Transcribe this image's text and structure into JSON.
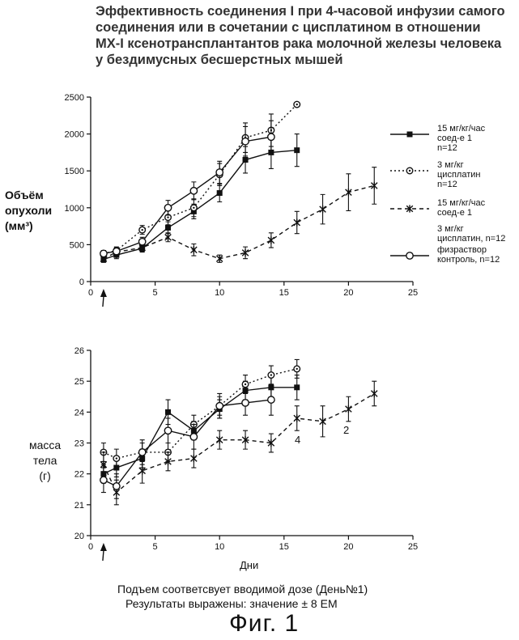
{
  "title_lines": [
    "Эффективность соединения I при 4-часовой инфузии самого",
    "соединения или в сочетании с цисплатином в отношении",
    "MX-I ксенотрансплантантов рака молочной железы человека",
    "у бездимусных бесшерстных мышей"
  ],
  "chart1": {
    "ylabel_lines": [
      "Объём",
      "опухоли",
      "(мм³)"
    ],
    "yticks": [
      0,
      500,
      1000,
      1500,
      2000,
      2500
    ],
    "xticks": [
      0,
      5,
      10,
      15,
      20,
      25
    ],
    "ylim": [
      0,
      2500
    ],
    "xlim": [
      0,
      25
    ]
  },
  "chart2": {
    "ylabel_lines": [
      "масса",
      "тела",
      "(г)"
    ],
    "yticks": [
      20,
      21,
      22,
      23,
      24,
      25,
      26
    ],
    "xticks": [
      0,
      5,
      10,
      15,
      20,
      25
    ],
    "ylim": [
      20,
      26
    ],
    "xlim": [
      0,
      25
    ],
    "xlabel": "Дни",
    "annotations": [
      "4",
      "2"
    ]
  },
  "legend": [
    {
      "lines": [
        "15 мг/кг/час",
        "соед-е 1",
        "n=12"
      ]
    },
    {
      "lines": [
        "3 мг/кг",
        "цисплатин",
        "n=12"
      ]
    },
    {
      "lines": [
        "15 мг/кг/час",
        "соед-е 1"
      ]
    },
    {
      "lines": [
        "3 мг/кг",
        "цисплатин, n=12"
      ]
    },
    {
      "lines": [
        "физраствор",
        "контроль, n=12"
      ]
    }
  ],
  "footer": {
    "line1": "Подъем соответсвует вводимой дозе (День№1)",
    "line2": "Результаты выражены: значение ± 8 ЕМ",
    "figure": "Фиг. 1"
  },
  "chart_data": [
    {
      "type": "line",
      "title": "",
      "xlabel": "",
      "ylabel": "Объём опухоли (мм³)",
      "xlim": [
        0,
        25
      ],
      "ylim": [
        0,
        2500
      ],
      "series": [
        {
          "name": "15 мг/кг/час соед-е 1 n=12",
          "marker": "square",
          "style": "solid",
          "x": [
            1,
            2,
            4,
            6,
            8,
            10,
            12,
            14,
            16
          ],
          "y": [
            300,
            360,
            450,
            730,
            950,
            1200,
            1650,
            1750,
            1780
          ],
          "err": [
            40,
            50,
            50,
            80,
            100,
            120,
            180,
            220,
            220
          ]
        },
        {
          "name": "3 мг/кг цисплатин n=12",
          "marker": "circle-dot",
          "style": "dotted",
          "x": [
            1,
            2,
            4,
            6,
            8,
            10,
            12,
            14,
            16
          ],
          "y": [
            380,
            420,
            700,
            870,
            1000,
            1450,
            1950,
            2050,
            2400
          ],
          "err": [
            40,
            50,
            60,
            100,
            120,
            150,
            200,
            220,
            0
          ]
        },
        {
          "name": "15 мг/кг/час соед-е 1 + 3 мг/кг цисплатин, n=12",
          "marker": "asterisk",
          "style": "dashed",
          "x": [
            1,
            2,
            4,
            6,
            8,
            10,
            12,
            14,
            16,
            18,
            20,
            22
          ],
          "y": [
            310,
            400,
            460,
            600,
            430,
            310,
            390,
            560,
            800,
            980,
            1210,
            1300
          ],
          "err": [
            40,
            50,
            50,
            60,
            80,
            50,
            80,
            100,
            150,
            200,
            250,
            250
          ]
        },
        {
          "name": "физраствор контроль, n=12",
          "marker": "circle",
          "style": "solid",
          "x": [
            1,
            2,
            4,
            6,
            8,
            10,
            12,
            14
          ],
          "y": [
            380,
            410,
            540,
            1000,
            1230,
            1480,
            1900,
            1960
          ],
          "err": [
            40,
            50,
            60,
            100,
            120,
            150,
            200,
            220
          ]
        }
      ]
    },
    {
      "type": "line",
      "title": "",
      "xlabel": "Дни",
      "ylabel": "масса тела (г)",
      "xlim": [
        0,
        25
      ],
      "ylim": [
        20,
        26
      ],
      "series": [
        {
          "name": "15 мг/кг/час соед-е 1",
          "marker": "square",
          "style": "solid",
          "x": [
            1,
            2,
            4,
            6,
            8,
            10,
            12,
            14,
            16
          ],
          "y": [
            22.0,
            22.2,
            22.5,
            24.0,
            23.4,
            24.1,
            24.7,
            24.8,
            24.8
          ],
          "err": [
            0.3,
            0.3,
            0.3,
            0.4,
            0.3,
            0.3,
            0.3,
            0.4,
            0.4
          ]
        },
        {
          "name": "3 мг/кг цисплатин",
          "marker": "circle-dot",
          "style": "dotted",
          "x": [
            1,
            2,
            4,
            6,
            8,
            10,
            12,
            14,
            16
          ],
          "y": [
            22.7,
            22.5,
            22.7,
            22.7,
            23.6,
            24.2,
            24.9,
            25.2,
            25.4
          ],
          "err": [
            0.3,
            0.3,
            0.3,
            0.3,
            0.3,
            0.3,
            0.3,
            0.3,
            0.3
          ]
        },
        {
          "name": "15 мг/кг/час соед-е 1 + 3 мг/кг цисплатин",
          "marker": "asterisk",
          "style": "dashed",
          "x": [
            1,
            2,
            4,
            6,
            8,
            10,
            12,
            14,
            16,
            18,
            20,
            22
          ],
          "y": [
            22.3,
            21.4,
            22.1,
            22.4,
            22.5,
            23.1,
            23.1,
            23.0,
            23.8,
            23.7,
            24.1,
            24.6
          ],
          "err": [
            0.4,
            0.4,
            0.4,
            0.3,
            0.3,
            0.3,
            0.3,
            0.3,
            0.4,
            0.5,
            0.4,
            0.4
          ]
        },
        {
          "name": "физраствор контроль",
          "marker": "circle",
          "style": "solid",
          "x": [
            1,
            2,
            4,
            6,
            8,
            10,
            12,
            14
          ],
          "y": [
            21.8,
            21.6,
            22.7,
            23.4,
            23.2,
            24.2,
            24.3,
            24.4
          ],
          "err": [
            0.4,
            0.4,
            0.4,
            0.4,
            0.4,
            0.4,
            0.4,
            0.5
          ]
        }
      ]
    }
  ]
}
